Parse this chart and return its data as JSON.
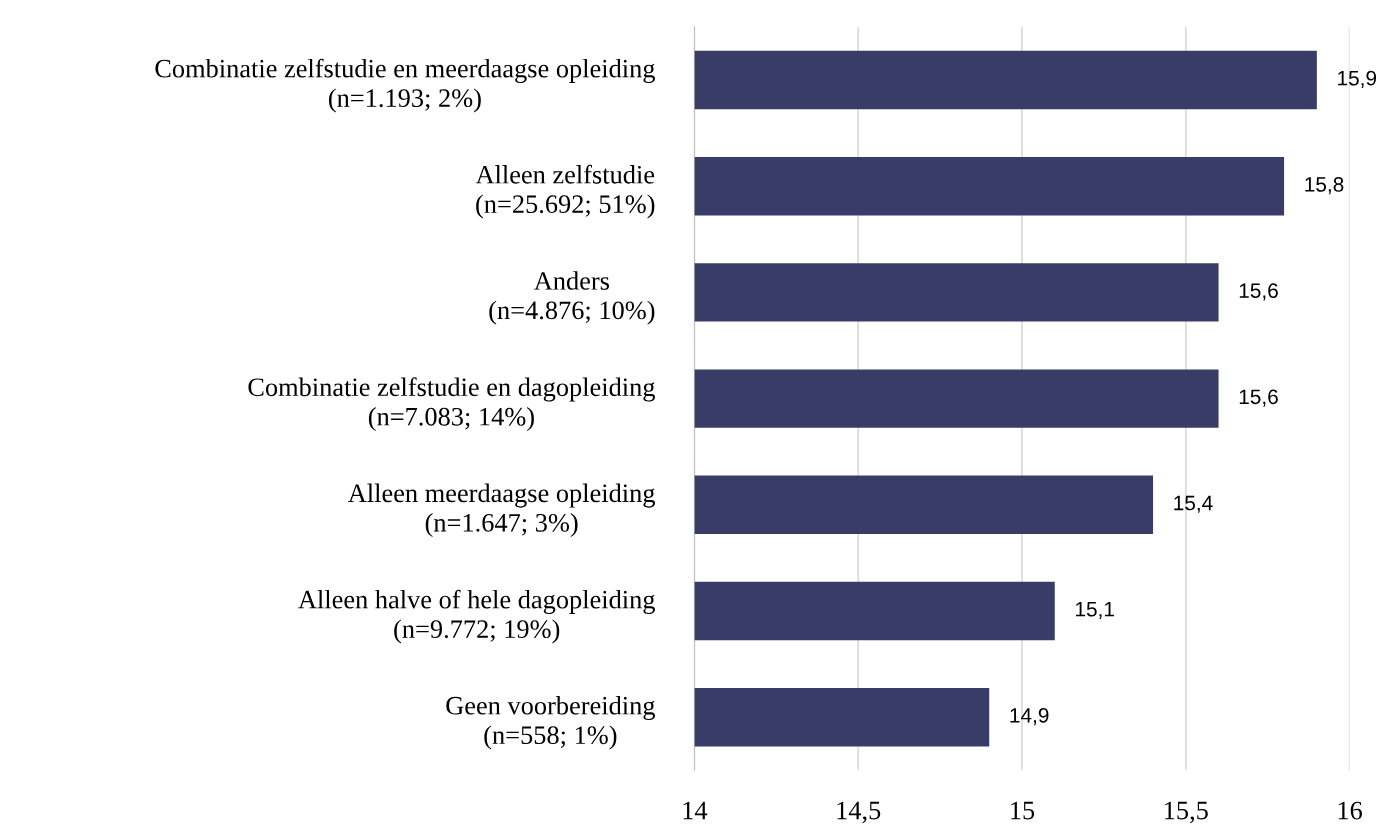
{
  "chart_data": {
    "type": "bar",
    "orientation": "horizontal",
    "categories": [
      "Combinatie zelfstudie en meerdaagse opleiding\n(n=1.193; 2%)",
      "Alleen zelfstudie\n(n=25.692; 51%)",
      "Anders\n(n=4.876; 10%)",
      "Combinatie zelfstudie en dagopleiding\n(n=7.083; 14%)",
      "Alleen meerdaagse opleiding\n(n=1.647; 3%)",
      "Alleen halve of hele dagopleiding\n(n=9.772; 19%)",
      "Geen voorbereiding\n(n=558; 1%)"
    ],
    "values": [
      15.9,
      15.8,
      15.6,
      15.6,
      15.4,
      15.1,
      14.9
    ],
    "value_labels": [
      "15,9",
      "15,8",
      "15,6",
      "15,6",
      "15,4",
      "15,1",
      "14,9"
    ],
    "color": "#383c66",
    "xlim": [
      14,
      16
    ],
    "xticks": [
      14,
      {
        "value": 14.5,
        "label": "14,5"
      },
      15,
      {
        "value": 15.5,
        "label": "15,5"
      },
      16
    ],
    "grid": "x"
  }
}
